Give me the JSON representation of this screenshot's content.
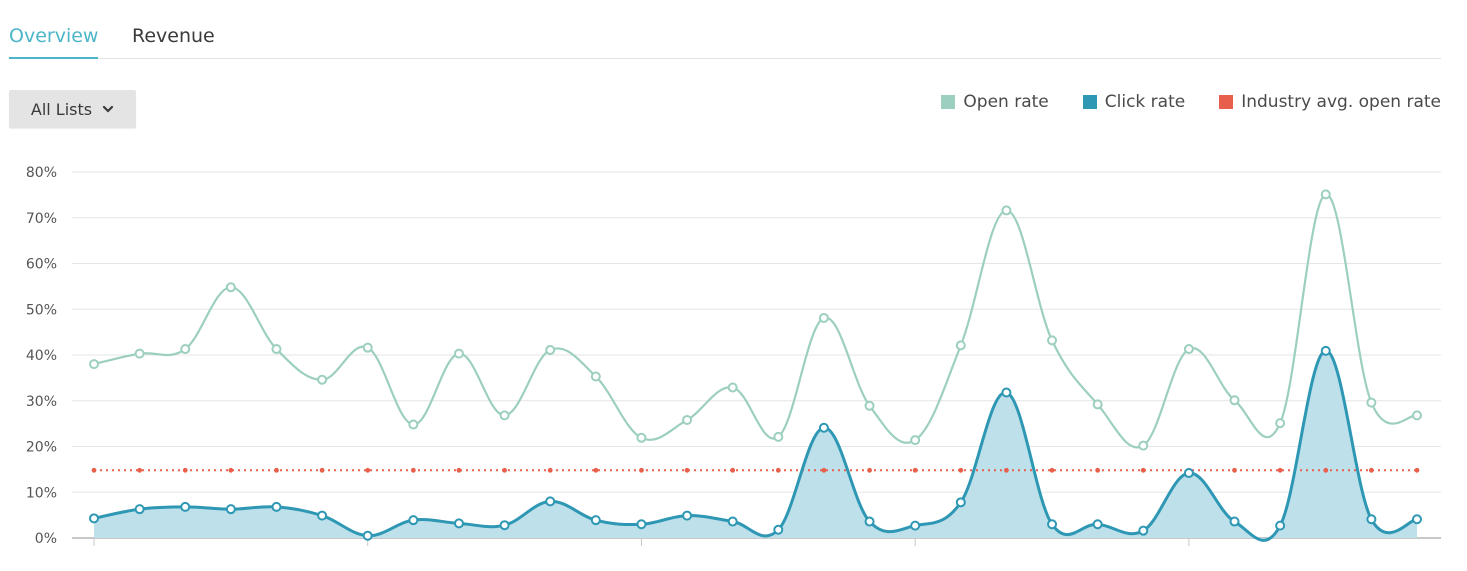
{
  "tabs": [
    {
      "label": "Overview",
      "active": true
    },
    {
      "label": "Revenue",
      "active": false
    }
  ],
  "filter": {
    "selected": "All Lists"
  },
  "colors": {
    "open_rate": "#9ccfbf",
    "click_rate": "#2e97b4",
    "click_fill": "#bde0ea",
    "industry": "#e8604c",
    "accent": "#4cb6c8"
  },
  "chart_data": {
    "type": "line",
    "ylim": [
      0,
      80
    ],
    "yticks": [
      "0%",
      "10%",
      "20%",
      "30%",
      "40%",
      "50%",
      "60%",
      "70%",
      "80%"
    ],
    "legend": [
      "Open rate",
      "Click rate",
      "Industry avg. open rate"
    ],
    "legend_position": "top-right",
    "grid": true,
    "series": [
      {
        "name": "Open rate",
        "values": [
          38,
          40.3,
          41.3,
          54.8,
          41.3,
          34.6,
          41.6,
          24.8,
          40.3,
          26.8,
          41.1,
          35.3,
          21.9,
          25.8,
          32.9,
          22.1,
          48.1,
          28.9,
          21.4,
          42.1,
          71.6,
          43.2,
          29.2,
          20.2,
          41.3,
          30.1,
          25.1,
          75.1,
          29.6,
          26.8
        ]
      },
      {
        "name": "Click rate",
        "values": [
          4.3,
          6.3,
          6.8,
          6.3,
          6.8,
          4.9,
          0.5,
          3.9,
          3.2,
          2.8,
          8,
          3.9,
          3,
          4.9,
          3.6,
          1.8,
          24.1,
          3.6,
          2.7,
          7.8,
          31.8,
          3,
          3,
          1.6,
          14.2,
          3.6,
          2.7,
          40.9,
          4.1,
          4.1
        ]
      },
      {
        "name": "Industry avg. open rate",
        "values": [
          14.8,
          14.8,
          14.8,
          14.8,
          14.8,
          14.8,
          14.8,
          14.8,
          14.8,
          14.8,
          14.8,
          14.8,
          14.8,
          14.8,
          14.8,
          14.8,
          14.8,
          14.8,
          14.8,
          14.8,
          14.8,
          14.8,
          14.8,
          14.8,
          14.8,
          14.8,
          14.8,
          14.8,
          14.8,
          14.8
        ]
      }
    ]
  }
}
